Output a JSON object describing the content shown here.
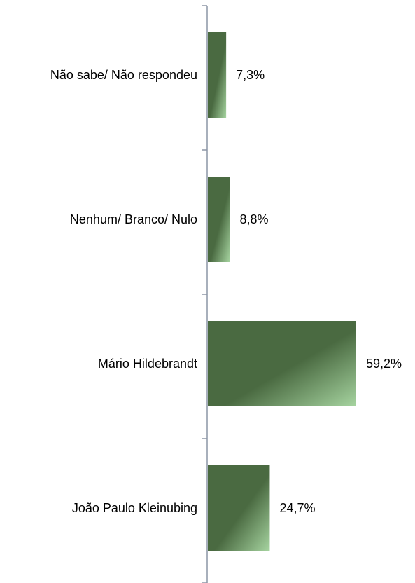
{
  "chart_data": {
    "type": "bar",
    "orientation": "horizontal",
    "categories": [
      "Não sabe/ Não respondeu",
      "Nenhum/ Branco/ Nulo",
      "Mário Hildebrandt",
      "João Paulo Kleinubing"
    ],
    "values": [
      7.3,
      8.8,
      59.2,
      24.7
    ],
    "value_labels": [
      "7,3%",
      "8,8%",
      "59,2%",
      "24,7%"
    ],
    "title": "",
    "xlabel": "",
    "ylabel": "",
    "xlim": [
      0,
      100
    ],
    "grid": false,
    "legend": "none",
    "colors": {
      "bar_dark": "#4a6a41",
      "bar_light": "#a6d4a0",
      "axis": "#8c96a6"
    }
  }
}
